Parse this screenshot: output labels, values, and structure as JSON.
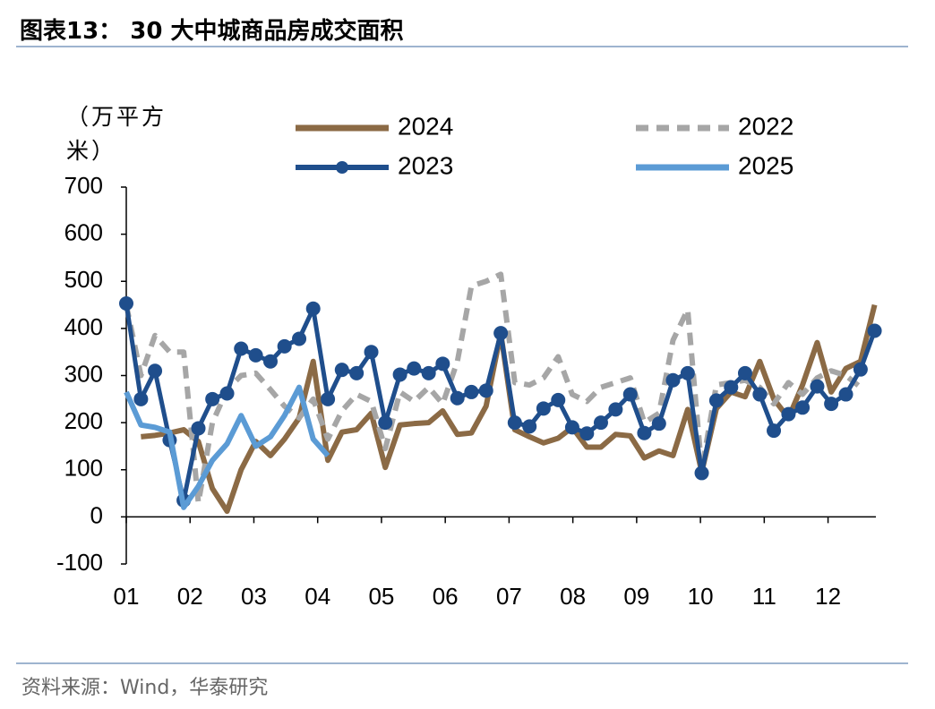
{
  "chart_data": {
    "type": "line",
    "title": "图表13： 30 大中城商品房成交面积",
    "ylabel": "（万平方米）",
    "source": "资料来源：Wind，华泰研究",
    "x": [
      1.0,
      1.23,
      1.45,
      1.68,
      1.9,
      2.13,
      2.35,
      2.58,
      2.8,
      3.03,
      3.26,
      3.48,
      3.71,
      3.93,
      4.16,
      4.38,
      4.61,
      4.84,
      5.06,
      5.29,
      5.51,
      5.74,
      5.96,
      6.19,
      6.41,
      6.64,
      6.87,
      7.09,
      7.32,
      7.54,
      7.77,
      7.99,
      8.22,
      8.44,
      8.67,
      8.9,
      9.12,
      9.35,
      9.57,
      9.8,
      10.02,
      10.25,
      10.48,
      10.7,
      10.93,
      11.15,
      11.38,
      11.6,
      11.83,
      12.05,
      12.28,
      12.51,
      12.73
    ],
    "series": [
      {
        "name": "2024",
        "color": "#8b6a45",
        "dash": false,
        "markers": false,
        "values": [
          null,
          170,
          173,
          178,
          185,
          160,
          60,
          12,
          100,
          160,
          130,
          165,
          210,
          330,
          120,
          180,
          185,
          220,
          105,
          195,
          198,
          200,
          225,
          175,
          178,
          235,
          390,
          185,
          170,
          157,
          167,
          190,
          148,
          148,
          175,
          172,
          125,
          140,
          130,
          228,
          95,
          230,
          265,
          255,
          330,
          250,
          210,
          280,
          370,
          265,
          315,
          330,
          450
        ]
      },
      {
        "name": "2022",
        "color": "#a6a6a6",
        "dash": true,
        "markers": false,
        "values": [
          450,
          300,
          385,
          350,
          350,
          30,
          200,
          270,
          300,
          305,
          270,
          235,
          210,
          250,
          165,
          225,
          260,
          245,
          145,
          265,
          245,
          275,
          240,
          330,
          490,
          500,
          515,
          285,
          280,
          295,
          340,
          260,
          245,
          275,
          285,
          295,
          200,
          220,
          375,
          440,
          100,
          280,
          285,
          290,
          275,
          240,
          285,
          260,
          295,
          310,
          300,
          275,
          null
        ]
      },
      {
        "name": "2023",
        "color": "#1f4e8c",
        "dash": false,
        "markers": true,
        "values": [
          453,
          250,
          310,
          163,
          35,
          188,
          250,
          262,
          357,
          343,
          330,
          362,
          378,
          442,
          250,
          312,
          305,
          350,
          200,
          302,
          315,
          305,
          325,
          252,
          265,
          268,
          390,
          200,
          192,
          230,
          248,
          190,
          177,
          200,
          228,
          260,
          178,
          198,
          290,
          305,
          93,
          247,
          275,
          305,
          260,
          183,
          218,
          232,
          277,
          240,
          260,
          313,
          395
        ]
      },
      {
        "name": "2025",
        "color": "#5b9bd5",
        "dash": false,
        "markers": false,
        "values": [
          265,
          195,
          190,
          180,
          20,
          65,
          120,
          155,
          215,
          150,
          170,
          215,
          275,
          165,
          130,
          null,
          null,
          null,
          null,
          null,
          null,
          null,
          null,
          null,
          null,
          null,
          null,
          null,
          null,
          null,
          null,
          null,
          null,
          null,
          null,
          null,
          null,
          null,
          null,
          null,
          null,
          null,
          null,
          null,
          null,
          null,
          null,
          null,
          null,
          null,
          null,
          null,
          null
        ]
      }
    ],
    "xlim": [
      1,
      12.75
    ],
    "xticks": [
      {
        "value": 1,
        "label": "01"
      },
      {
        "value": 2,
        "label": "02"
      },
      {
        "value": 3,
        "label": "03"
      },
      {
        "value": 4,
        "label": "04"
      },
      {
        "value": 5,
        "label": "05"
      },
      {
        "value": 6,
        "label": "06"
      },
      {
        "value": 7,
        "label": "07"
      },
      {
        "value": 8,
        "label": "08"
      },
      {
        "value": 9,
        "label": "09"
      },
      {
        "value": 10,
        "label": "10"
      },
      {
        "value": 11,
        "label": "11"
      },
      {
        "value": 12,
        "label": "12"
      }
    ],
    "ylim": [
      -100,
      700
    ],
    "yticks": [
      -100,
      0,
      100,
      200,
      300,
      400,
      500,
      600,
      700
    ],
    "grid": false
  }
}
